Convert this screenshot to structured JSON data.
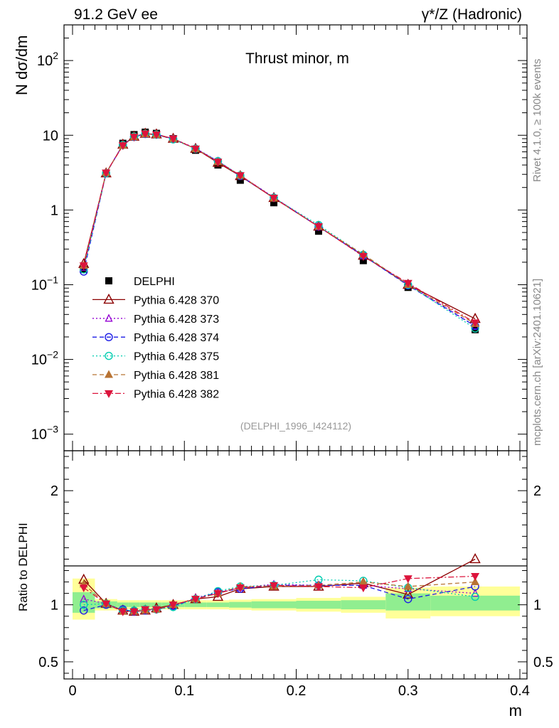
{
  "header": {
    "left": "91.2 GeV ee",
    "right": "γ*/Z (Hadronic)"
  },
  "side_labels": {
    "rivet": "Rivet 4.1.0, ≥ 100k events",
    "mcplots": "mcplots.cern.ch [arXiv:2401.10621]"
  },
  "chart_data": [
    {
      "panel": "main",
      "type": "line",
      "title": "Thrust minor, m",
      "ylabel": "N  dσ/dm",
      "yscale": "log",
      "ylim": [
        0.0006,
        300
      ],
      "xlim": [
        -0.01,
        0.4
      ],
      "ytick_labels": [
        "10^-3",
        "10^-2",
        "10^-1",
        "1",
        "10",
        "10^2"
      ],
      "ytick_values": [
        0.001,
        0.01,
        0.1,
        1,
        10,
        100
      ],
      "watermark": "(DELPHI_1996_I424112)",
      "legend_position": "middle-left",
      "x": [
        0.01,
        0.03,
        0.045,
        0.055,
        0.065,
        0.075,
        0.09,
        0.11,
        0.13,
        0.15,
        0.18,
        0.22,
        0.26,
        0.3,
        0.36
      ],
      "data_series": {
        "name": "DELPHI",
        "values": [
          0.16,
          3.1,
          7.8,
          10.2,
          11.0,
          10.6,
          9.0,
          6.3,
          4.0,
          2.5,
          1.25,
          0.52,
          0.21,
          0.092,
          0.025
        ]
      },
      "series": [
        {
          "name": "Pythia 6.428 370",
          "color": "#8b0000",
          "dash": "",
          "marker": "triangle-open",
          "values": [
            0.19,
            3.1,
            7.5,
            9.6,
            10.5,
            10.3,
            9.0,
            6.6,
            4.3,
            2.85,
            1.45,
            0.6,
            0.245,
            0.1,
            0.035
          ]
        },
        {
          "name": "Pythia 6.428 373",
          "color": "#9400d3",
          "dash": "2,3",
          "marker": "triangle-open-small",
          "values": [
            0.17,
            3.15,
            7.4,
            9.6,
            10.4,
            10.2,
            9.0,
            6.7,
            4.5,
            2.9,
            1.48,
            0.6,
            0.245,
            0.102,
            0.028
          ]
        },
        {
          "name": "Pythia 6.428 374",
          "color": "#1a1ae6",
          "dash": "6,4",
          "marker": "circle-open",
          "values": [
            0.15,
            3.1,
            7.4,
            9.5,
            10.4,
            10.2,
            8.9,
            6.6,
            4.5,
            2.85,
            1.46,
            0.6,
            0.245,
            0.098,
            0.028
          ]
        },
        {
          "name": "Pythia 6.428 375",
          "color": "#00cdb0",
          "dash": "2,3",
          "marker": "circle-open",
          "values": [
            0.16,
            3.1,
            7.4,
            9.6,
            10.5,
            10.2,
            8.8,
            6.6,
            4.5,
            2.9,
            1.46,
            0.63,
            0.252,
            0.1,
            0.026
          ]
        },
        {
          "name": "Pythia 6.428 381",
          "color": "#b87333",
          "dash": "6,4",
          "marker": "triangle-filled",
          "values": [
            0.18,
            3.15,
            7.3,
            9.5,
            10.4,
            10.2,
            9.0,
            6.6,
            4.4,
            2.9,
            1.44,
            0.6,
            0.255,
            0.1,
            0.03
          ]
        },
        {
          "name": "Pythia 6.428 382",
          "color": "#dc143c",
          "dash": "8,3,2,3",
          "marker": "triangle-down-filled",
          "values": [
            0.18,
            3.15,
            7.3,
            9.5,
            10.5,
            10.2,
            9.0,
            6.6,
            4.4,
            2.9,
            1.45,
            0.6,
            0.24,
            0.105,
            0.031
          ]
        }
      ]
    },
    {
      "panel": "ratio",
      "type": "line",
      "ylabel": "Ratio to DELPHI",
      "xlabel": "m",
      "ylim": [
        0.35,
        2.35
      ],
      "xlim": [
        -0.01,
        0.4
      ],
      "ytick_labels": [
        "0.5",
        "1",
        "2"
      ],
      "ytick_values": [
        0.5,
        1,
        2
      ],
      "xtick_labels": [
        "0",
        "0.1",
        "0.2",
        "0.3",
        "0.4"
      ],
      "xtick_values": [
        0,
        0.1,
        0.2,
        0.3,
        0.4
      ],
      "bands": [
        {
          "x0": 0.0,
          "x1": 0.02,
          "inner": [
            0.93,
            1.11
          ],
          "outer": [
            0.87,
            1.23
          ]
        },
        {
          "x0": 0.02,
          "x1": 0.04,
          "inner": [
            0.97,
            1.03
          ],
          "outer": [
            0.95,
            1.05
          ]
        },
        {
          "x0": 0.04,
          "x1": 0.05,
          "inner": [
            0.98,
            1.02
          ],
          "outer": [
            0.96,
            1.04
          ]
        },
        {
          "x0": 0.05,
          "x1": 0.06,
          "inner": [
            0.98,
            1.02
          ],
          "outer": [
            0.96,
            1.04
          ]
        },
        {
          "x0": 0.06,
          "x1": 0.07,
          "inner": [
            0.98,
            1.02
          ],
          "outer": [
            0.96,
            1.04
          ]
        },
        {
          "x0": 0.07,
          "x1": 0.08,
          "inner": [
            0.98,
            1.02
          ],
          "outer": [
            0.96,
            1.04
          ]
        },
        {
          "x0": 0.08,
          "x1": 0.1,
          "inner": [
            0.98,
            1.02
          ],
          "outer": [
            0.96,
            1.04
          ]
        },
        {
          "x0": 0.1,
          "x1": 0.12,
          "inner": [
            0.98,
            1.02
          ],
          "outer": [
            0.96,
            1.04
          ]
        },
        {
          "x0": 0.12,
          "x1": 0.14,
          "inner": [
            0.98,
            1.02
          ],
          "outer": [
            0.96,
            1.04
          ]
        },
        {
          "x0": 0.14,
          "x1": 0.16,
          "inner": [
            0.975,
            1.025
          ],
          "outer": [
            0.955,
            1.045
          ]
        },
        {
          "x0": 0.16,
          "x1": 0.2,
          "inner": [
            0.97,
            1.03
          ],
          "outer": [
            0.95,
            1.05
          ]
        },
        {
          "x0": 0.2,
          "x1": 0.24,
          "inner": [
            0.965,
            1.035
          ],
          "outer": [
            0.94,
            1.06
          ]
        },
        {
          "x0": 0.24,
          "x1": 0.28,
          "inner": [
            0.96,
            1.04
          ],
          "outer": [
            0.93,
            1.07
          ]
        },
        {
          "x0": 0.28,
          "x1": 0.32,
          "inner": [
            0.95,
            1.1
          ],
          "outer": [
            0.88,
            1.15
          ]
        },
        {
          "x0": 0.32,
          "x1": 0.4,
          "inner": [
            0.95,
            1.08
          ],
          "outer": [
            0.9,
            1.16
          ]
        }
      ],
      "ratios": [
        {
          "name": "Pythia 6.428 370",
          "values": [
            1.22,
            1.01,
            0.95,
            0.94,
            0.95,
            0.97,
            1.0,
            1.05,
            1.07,
            1.14,
            1.16,
            1.16,
            1.19,
            1.09,
            1.4
          ]
        },
        {
          "name": "Pythia 6.428 373",
          "values": [
            1.05,
            1.01,
            0.95,
            0.94,
            0.95,
            0.96,
            0.99,
            1.06,
            1.11,
            1.15,
            1.18,
            1.17,
            1.17,
            1.14,
            1.1
          ]
        },
        {
          "name": "Pythia 6.428 374",
          "values": [
            0.95,
            1.0,
            0.96,
            0.94,
            0.95,
            0.96,
            0.99,
            1.05,
            1.11,
            1.14,
            1.17,
            1.17,
            1.17,
            1.05,
            1.16
          ]
        },
        {
          "name": "Pythia 6.428 375",
          "values": [
            1.0,
            1.01,
            0.95,
            0.95,
            0.96,
            0.96,
            0.98,
            1.05,
            1.12,
            1.16,
            1.17,
            1.22,
            1.21,
            1.15,
            1.07
          ]
        },
        {
          "name": "Pythia 6.428 381",
          "values": [
            1.18,
            1.01,
            0.94,
            0.94,
            0.95,
            0.96,
            1.0,
            1.05,
            1.1,
            1.16,
            1.16,
            1.17,
            1.2,
            1.16,
            1.2
          ]
        },
        {
          "name": "Pythia 6.428 382",
          "values": [
            1.15,
            1.01,
            0.94,
            0.94,
            0.96,
            0.96,
            1.0,
            1.05,
            1.1,
            1.15,
            1.17,
            1.16,
            1.15,
            1.23,
            1.25
          ]
        }
      ]
    }
  ]
}
